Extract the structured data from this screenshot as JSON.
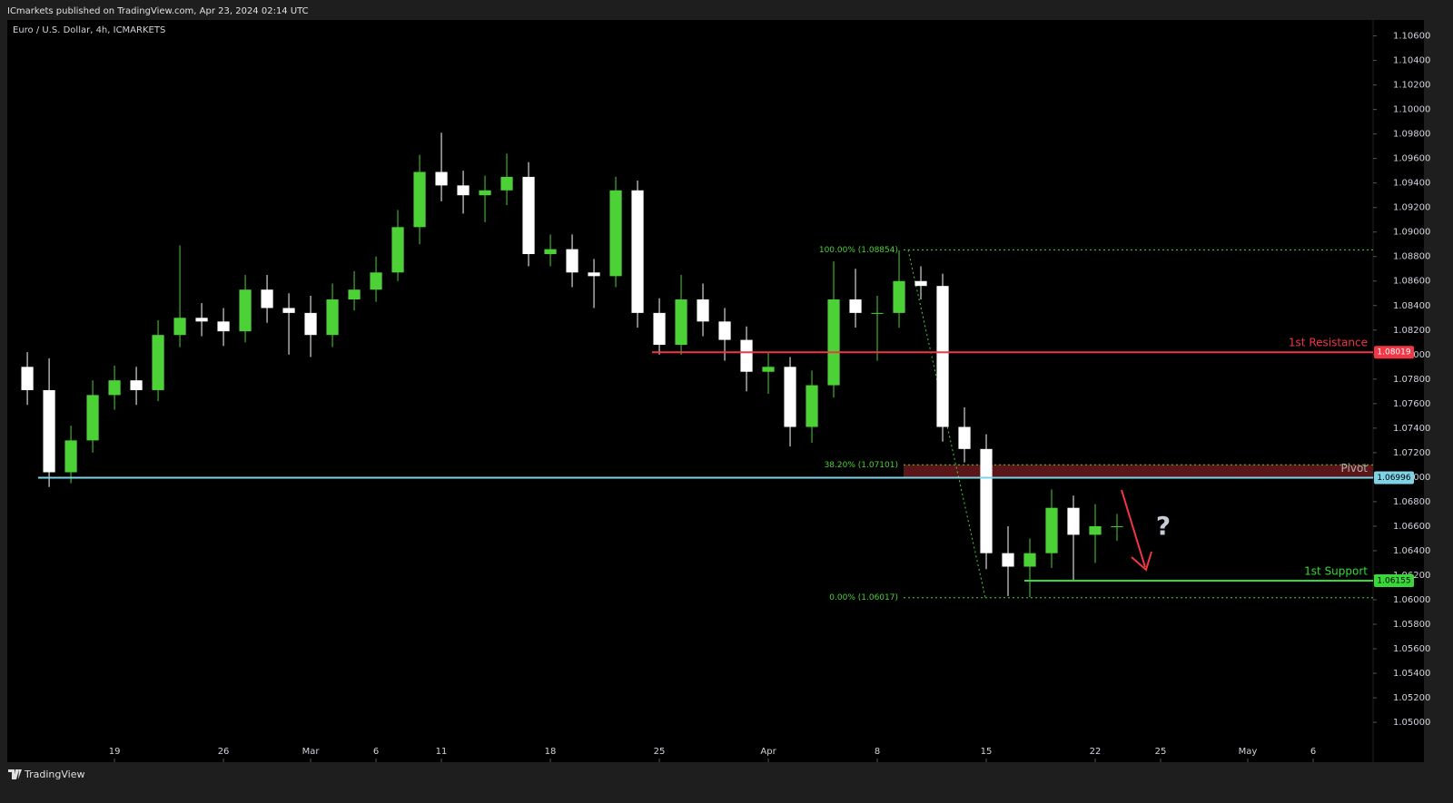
{
  "header": "ICmarkets published on TradingView.com, Apr 23, 2024 02:14 UTC",
  "footer": "TradingView",
  "chart_data": {
    "type": "candlestick",
    "title": "Euro / U.S. Dollar, 4h, ICMARKETS",
    "annotation": "?",
    "up_color": "#4cd137",
    "down_color": "#ffffff",
    "x": [
      -4,
      -3,
      -2,
      -1,
      0,
      1,
      2,
      3,
      4,
      5,
      6,
      7,
      8,
      9,
      10,
      11,
      12,
      13,
      14,
      15,
      16,
      17,
      18,
      19,
      20,
      21,
      22,
      23,
      24,
      25,
      26,
      27,
      28,
      29,
      30,
      31,
      32,
      33,
      34,
      35,
      36,
      37,
      38,
      39,
      40,
      41,
      42,
      43,
      44,
      45,
      46
    ],
    "open": [
      1.079,
      1.0771,
      1.0704,
      1.073,
      1.0767,
      1.0779,
      1.0771,
      1.0816,
      1.083,
      1.0827,
      1.0819,
      1.0853,
      1.0838,
      1.0834,
      1.0816,
      1.0845,
      1.0853,
      1.0867,
      1.0904,
      1.0949,
      1.0938,
      1.093,
      1.0934,
      1.0945,
      1.0882,
      1.0886,
      1.0867,
      1.0864,
      1.0934,
      1.0834,
      1.0808,
      1.0845,
      1.0827,
      1.0812,
      1.0786,
      1.079,
      1.0741,
      1.0775,
      1.0845,
      1.0834,
      1.0834,
      1.086,
      1.0856,
      1.0741,
      1.0723,
      1.0638,
      1.0627,
      1.0638,
      1.0675,
      1.0653,
      1.066
    ],
    "high": [
      1.0802,
      1.0797,
      1.0742,
      1.0779,
      1.0791,
      1.079,
      1.0828,
      1.0889,
      1.0842,
      1.0838,
      1.0865,
      1.0865,
      1.085,
      1.0848,
      1.0858,
      1.0868,
      1.088,
      1.0918,
      1.0963,
      1.0981,
      1.095,
      1.0946,
      1.0964,
      1.0957,
      1.0898,
      1.0898,
      1.0878,
      1.0945,
      1.0942,
      1.0846,
      1.0865,
      1.0858,
      1.0838,
      1.0823,
      1.0802,
      1.0798,
      1.0787,
      1.0876,
      1.087,
      1.0848,
      1.0885,
      1.0872,
      1.0866,
      1.0757,
      1.0735,
      1.066,
      1.065,
      1.069,
      1.0685,
      1.0678,
      1.067
    ],
    "low": [
      1.0759,
      1.0692,
      1.0695,
      1.072,
      1.0755,
      1.0759,
      1.0762,
      1.0806,
      1.0815,
      1.0807,
      1.081,
      1.0826,
      1.08,
      1.0798,
      1.0806,
      1.0836,
      1.0843,
      1.086,
      1.089,
      1.0925,
      1.0915,
      1.0908,
      1.0922,
      1.0872,
      1.0872,
      1.0855,
      1.0838,
      1.0855,
      1.0822,
      1.08,
      1.08,
      1.0815,
      1.0795,
      1.077,
      1.0768,
      1.0725,
      1.0728,
      1.0765,
      1.0822,
      1.0795,
      1.0822,
      1.0845,
      1.0729,
      1.0712,
      1.0625,
      1.0603,
      1.0602,
      1.0626,
      1.0615,
      1.063,
      1.0648
    ],
    "close": [
      1.0771,
      1.0704,
      1.073,
      1.0767,
      1.0779,
      1.0771,
      1.0816,
      1.083,
      1.0827,
      1.0819,
      1.0853,
      1.0838,
      1.0834,
      1.0816,
      1.0845,
      1.0853,
      1.0867,
      1.0904,
      1.0949,
      1.0938,
      1.093,
      1.0934,
      1.0945,
      1.0882,
      1.0886,
      1.0867,
      1.0864,
      1.0934,
      1.0834,
      1.0808,
      1.0845,
      1.0827,
      1.0812,
      1.0786,
      1.079,
      1.0741,
      1.0775,
      1.0845,
      1.0834,
      1.0834,
      1.086,
      1.0856,
      1.0741,
      1.0723,
      1.0638,
      1.0627,
      1.0638,
      1.0675,
      1.0653,
      1.066,
      1.066
    ],
    "xlim": [
      -4.92,
      57.75
    ],
    "xticks": [
      {
        "value": 0,
        "label": "19"
      },
      {
        "value": 5,
        "label": "26"
      },
      {
        "value": 9,
        "label": "Mar"
      },
      {
        "value": 12,
        "label": "6"
      },
      {
        "value": 15,
        "label": "11"
      },
      {
        "value": 20,
        "label": "18"
      },
      {
        "value": 25,
        "label": "25"
      },
      {
        "value": 30,
        "label": "Apr"
      },
      {
        "value": 35,
        "label": "8"
      },
      {
        "value": 40,
        "label": "15"
      },
      {
        "value": 45,
        "label": "22"
      },
      {
        "value": 48,
        "label": "25"
      },
      {
        "value": 52,
        "label": "May"
      },
      {
        "value": 55,
        "label": "6"
      }
    ],
    "ylim": [
      1.0486,
      1.1073
    ],
    "yticks": [
      {
        "value": 1.05,
        "label": "1.05000"
      },
      {
        "value": 1.052,
        "label": "1.05200"
      },
      {
        "value": 1.054,
        "label": "1.05400"
      },
      {
        "value": 1.056,
        "label": "1.05600"
      },
      {
        "value": 1.058,
        "label": "1.05800"
      },
      {
        "value": 1.06,
        "label": "1.06000"
      },
      {
        "value": 1.062,
        "label": "1.06200"
      },
      {
        "value": 1.064,
        "label": "1.06400"
      },
      {
        "value": 1.066,
        "label": "1.06600"
      },
      {
        "value": 1.068,
        "label": "1.06800"
      },
      {
        "value": 1.07,
        "label": "1.07000"
      },
      {
        "value": 1.072,
        "label": "1.07200"
      },
      {
        "value": 1.074,
        "label": "1.07400"
      },
      {
        "value": 1.076,
        "label": "1.07600"
      },
      {
        "value": 1.078,
        "label": "1.07800"
      },
      {
        "value": 1.08,
        "label": "1.08000"
      },
      {
        "value": 1.082,
        "label": "1.08200"
      },
      {
        "value": 1.084,
        "label": "1.08400"
      },
      {
        "value": 1.086,
        "label": "1.08600"
      },
      {
        "value": 1.088,
        "label": "1.08800"
      },
      {
        "value": 1.09,
        "label": "1.09000"
      },
      {
        "value": 1.092,
        "label": "1.09200"
      },
      {
        "value": 1.094,
        "label": "1.09400"
      },
      {
        "value": 1.096,
        "label": "1.09600"
      },
      {
        "value": 1.098,
        "label": "1.09800"
      },
      {
        "value": 1.1,
        "label": "1.10000"
      },
      {
        "value": 1.102,
        "label": "1.10200"
      },
      {
        "value": 1.104,
        "label": "1.10400"
      },
      {
        "value": 1.106,
        "label": "1.10600"
      }
    ],
    "levels": [
      {
        "name": "1st Resistance",
        "value": 1.08019,
        "value_label": "1.08019",
        "color": "#f23645"
      },
      {
        "name": "Pivot",
        "value": 1.06996,
        "value_label": "1.06996",
        "color": "#7fd3e6"
      },
      {
        "name": "1st Support",
        "value": 1.06155,
        "value_label": "1.06155",
        "color": "#36d936"
      }
    ],
    "fib": {
      "color": "#4cd137",
      "zone_color": "#6b1a1f",
      "levels": [
        {
          "label": "100.00% (1.08854)",
          "value": 1.08854
        },
        {
          "label": "38.20% (1.07101)",
          "value": 1.07101
        },
        {
          "label": "0.00% (1.06017)",
          "value": 1.06017
        }
      ]
    }
  }
}
